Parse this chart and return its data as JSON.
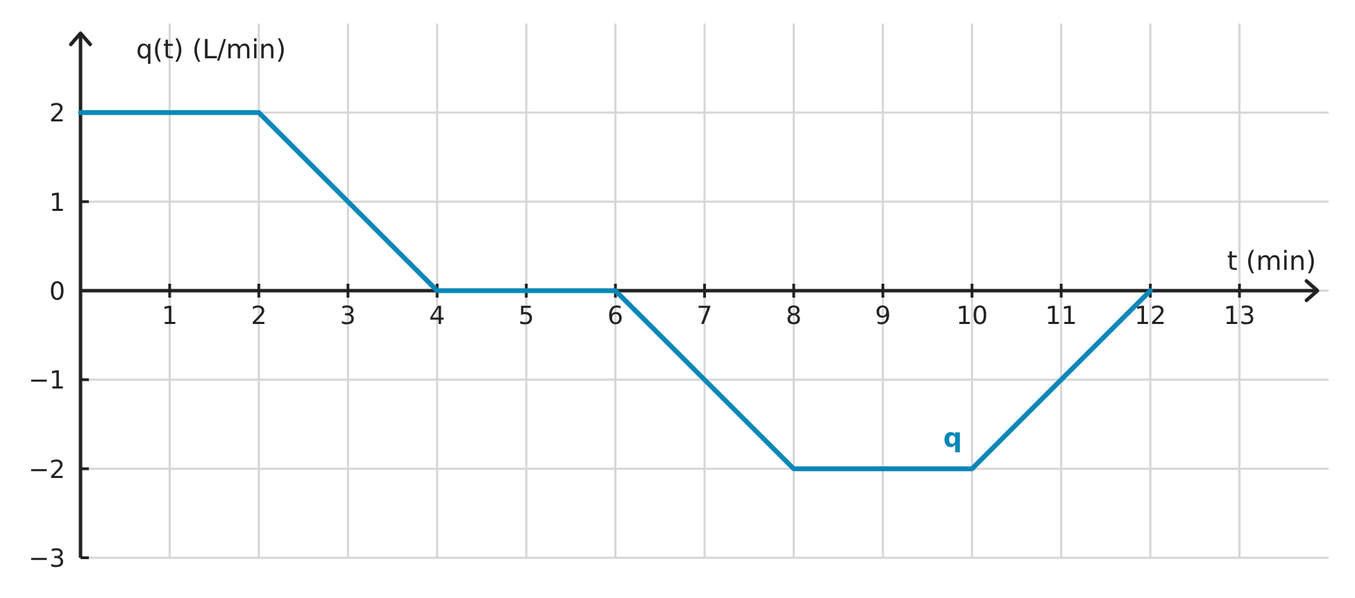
{
  "chart_data": {
    "type": "line",
    "xlabel": "t (min)",
    "ylabel": "q(t) (L/min)",
    "x": [
      0,
      2,
      4,
      6,
      8,
      10,
      12
    ],
    "series": [
      {
        "name": "q",
        "color": "#0a87b8",
        "values": [
          2,
          2,
          0,
          0,
          -2,
          -2,
          0
        ]
      }
    ],
    "xlim": [
      0,
      14
    ],
    "ylim": [
      -3,
      3
    ],
    "xticks": [
      1,
      2,
      3,
      4,
      5,
      6,
      7,
      8,
      9,
      10,
      11,
      12,
      13
    ],
    "yticks": [
      -3,
      -2,
      -1,
      0,
      1,
      2
    ],
    "grid": true
  }
}
